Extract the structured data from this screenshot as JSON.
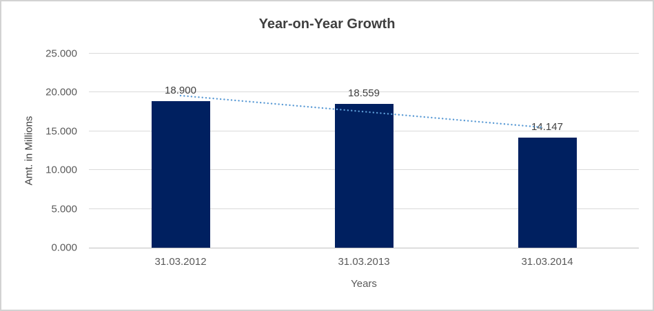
{
  "chart_data": {
    "type": "bar",
    "title": "Year-on-Year Growth",
    "xlabel": "Years",
    "ylabel": "Amt. in Millions",
    "categories": [
      "31.03.2012",
      "31.03.2013",
      "31.03.2014"
    ],
    "values": [
      18.9,
      18.559,
      14.147
    ],
    "value_labels": [
      "18.900",
      "18.559",
      "14.147"
    ],
    "y_ticks": [
      {
        "label": "25.000",
        "value": 25
      },
      {
        "label": "20.000",
        "value": 20
      },
      {
        "label": "15.000",
        "value": 15
      },
      {
        "label": "10.000",
        "value": 10
      },
      {
        "label": "5.000",
        "value": 5
      },
      {
        "label": "0.000",
        "value": 0
      }
    ],
    "ylim": [
      0,
      25
    ],
    "grid": true,
    "legend": "none",
    "bar_color": "#002060",
    "trendline": {
      "style": "dotted",
      "color": "#5B9BD5",
      "start_value": 19.6,
      "end_value": 15.5
    },
    "colors": {
      "title": "#3F3F3F",
      "tick_labels": "#595959",
      "data_labels": "#404040",
      "gridline": "#D9D9D9",
      "axis_line": "#BFBFBF",
      "background": "#FFFFFF",
      "border": "#D2D2D2"
    }
  }
}
